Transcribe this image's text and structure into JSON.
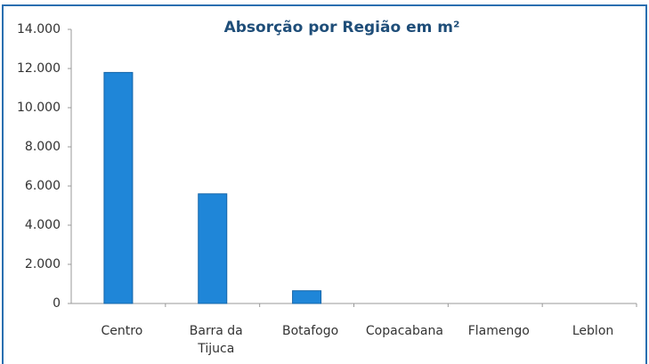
{
  "chart_data": {
    "type": "bar",
    "title": "Absorção por Região em m²",
    "categories": [
      "Centro",
      "Barra da Tijuca",
      "Botafogo",
      "Copacabana",
      "Flamengo",
      "Leblon"
    ],
    "values": [
      11800,
      5600,
      650,
      0,
      0,
      0
    ],
    "color": "#1f86d8",
    "ylim": [
      0,
      14000
    ],
    "yticks": [
      0,
      {
        "value": 2000,
        "label": "2.000"
      },
      {
        "value": 4000,
        "label": "4.000"
      },
      {
        "value": 6000,
        "label": "6.000"
      },
      {
        "value": 8000,
        "label": "8.000"
      },
      {
        "value": 10000,
        "label": "10.000"
      },
      {
        "value": 12000,
        "label": "12.000"
      },
      {
        "value": 14000,
        "label": "14.000"
      }
    ],
    "grid": false
  }
}
